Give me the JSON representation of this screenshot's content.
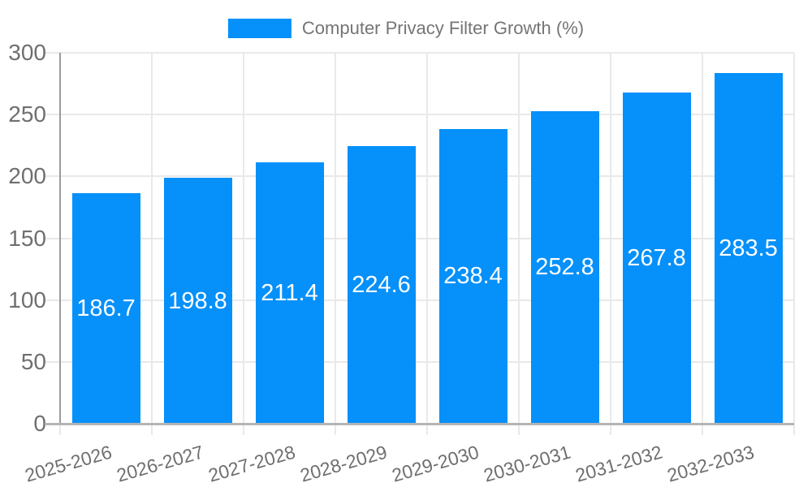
{
  "legend": {
    "label": "Computer Privacy Filter Growth (%)"
  },
  "chart_data": {
    "type": "bar",
    "title": "Computer Privacy Filter Growth (%)",
    "categories": [
      "2025-2026",
      "2026-2027",
      "2027-2028",
      "2028-2029",
      "2029-2030",
      "2030-2031",
      "2031-2032",
      "2032-2033"
    ],
    "values": [
      186.7,
      198.8,
      211.4,
      224.6,
      238.4,
      252.8,
      267.8,
      283.5
    ],
    "xlabel": "",
    "ylabel": "",
    "ylim": [
      0,
      300
    ],
    "yticks": [
      0,
      50,
      100,
      150,
      200,
      250,
      300
    ],
    "grid": true,
    "legend_position": "top",
    "bar_color": "#0590FA",
    "bar_label_color": "#FFFFFF",
    "grid_color": "#E9E9E9",
    "axis_line_color": "#9B9B9B",
    "baseline_color": "#B4B4B4",
    "tick_text_color": "#6F6F6F",
    "legend_text_color": "#757575"
  }
}
